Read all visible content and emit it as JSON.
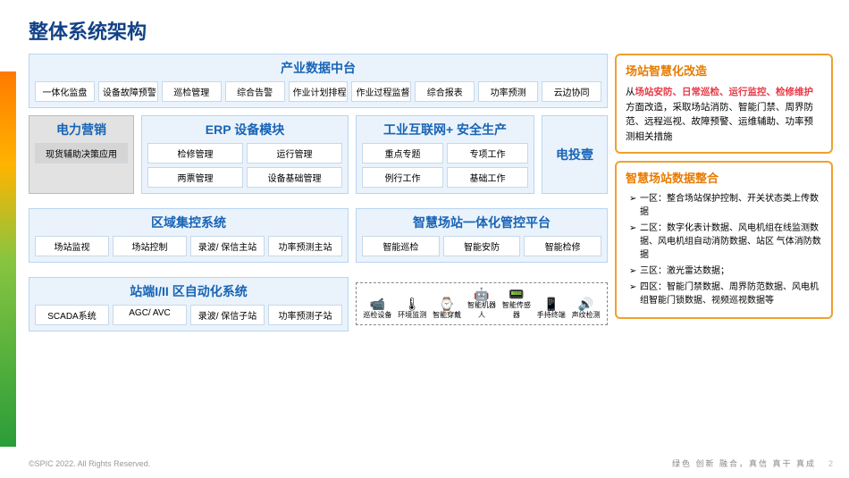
{
  "title": "整体系统架构",
  "colors": {
    "title": "#124187",
    "block_border": "#b8d4f0",
    "block_bg": "#eaf3fc",
    "header_text": "#1864b5",
    "orange": "#e87b00",
    "red": "#e63946"
  },
  "top_block": {
    "header": "产业数据中台",
    "items": [
      "一体化监盘",
      "设备故障预警",
      "巡检管理",
      "综合告警",
      "作业计划排程",
      "作业过程监督",
      "综合报表",
      "功率预测",
      "云边协同"
    ]
  },
  "row2": {
    "marketing": {
      "header": "电力营销",
      "items": [
        "现货辅助决策应用"
      ]
    },
    "erp": {
      "header": "ERP 设备模块",
      "items": [
        "检修管理",
        "运行管理",
        "两票管理",
        "设备基础管理"
      ]
    },
    "safety": {
      "header": "工业互联网+ 安全生产",
      "items": [
        "重点专题",
        "专项工作",
        "例行工作",
        "基础工作"
      ]
    },
    "dty": {
      "header": "电投壹"
    }
  },
  "row3": {
    "regional": {
      "header": "区域集控系统",
      "items": [
        "场站监视",
        "场站控制",
        "录波/ 保信主站",
        "功率预测主站"
      ]
    },
    "platform": {
      "header": "智慧场站一体化管控平台",
      "items": [
        "智能巡检",
        "智能安防",
        "智能检修"
      ]
    }
  },
  "row4": {
    "auto": {
      "header": "站端I/II 区自动化系统",
      "items": [
        "SCADA系统",
        "AGC/ AVC",
        "录波/ 保信子站",
        "功率预测子站"
      ]
    },
    "icons": [
      {
        "glyph": "📹",
        "label": "巡检设备"
      },
      {
        "glyph": "🌡",
        "label": "环境监测"
      },
      {
        "glyph": "⌚",
        "label": "智能穿戴"
      },
      {
        "glyph": "🤖",
        "label": "智能机器人"
      },
      {
        "glyph": "📟",
        "label": "智能传感器"
      },
      {
        "glyph": "📱",
        "label": "手持终端"
      },
      {
        "glyph": "🔊",
        "label": "声纹检测"
      }
    ]
  },
  "right": {
    "s1": {
      "header": "场站智慧化改造",
      "pre": "从",
      "hl": "场站安防、日常巡检、运行监控、检修维护",
      "post": "方面改造，采取场站消防、智能门禁、周界防范、远程巡视、故障预警、运维辅助、功率预测相关措施"
    },
    "s2": {
      "header": "智慧场站数据整合",
      "items": [
        "一区：整合场站保护控制、开关状态类上传数据",
        "二区：数字化表计数据、风电机组在线监测数据、风电机组自动消防数据、站区 气体消防数据",
        "三区：激光雷达数据；",
        "四区：智能门禁数据、周界防范数据、风电机组智能门锁数据、视频巡视数据等"
      ]
    }
  },
  "footer": {
    "copyright": "©SPIC 2022. All Rights Reserved.",
    "motto": "绿色 创新 融合，真信 真干 真成",
    "page": "2"
  }
}
